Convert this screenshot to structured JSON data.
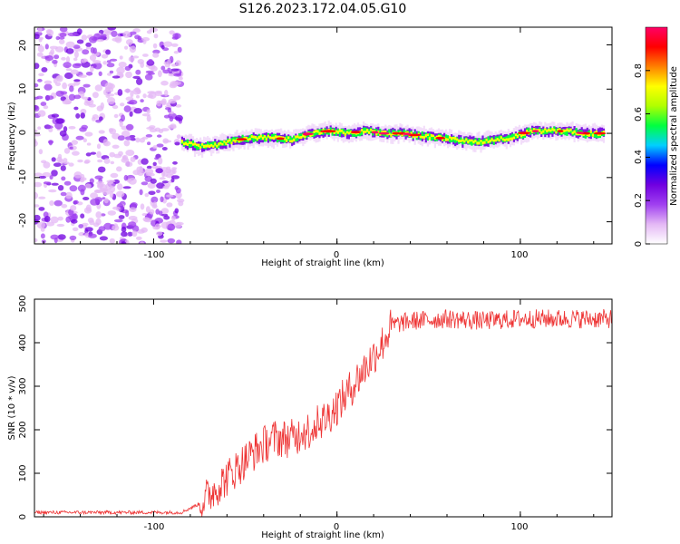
{
  "title": "S126.2023.172.04.05.G10",
  "chart_data": [
    {
      "type": "heatmap",
      "xlabel": "Height of straight line (km)",
      "ylabel": "Frequency (Hz)",
      "xlim": [
        -165,
        150
      ],
      "ylim": [
        -25,
        24
      ],
      "x_ticks": [
        -100,
        0,
        100
      ],
      "y_ticks": [
        -20,
        -10,
        0,
        10,
        20
      ],
      "noise_region_x": [
        -165,
        -85
      ],
      "ridge": {
        "x": [
          -85,
          -75,
          -65,
          -55,
          -45,
          -35,
          -25,
          -15,
          -5,
          5,
          15,
          25,
          35,
          45,
          55,
          65,
          75,
          85,
          95,
          105,
          115,
          125,
          135,
          145
        ],
        "freq": [
          -2,
          -3,
          -2.5,
          -1.5,
          -1,
          -1,
          -1.5,
          0,
          0.5,
          0,
          0.5,
          0,
          0,
          -0.5,
          -1,
          -1.5,
          -2,
          -1.5,
          -1,
          0.5,
          0.5,
          0.5,
          0,
          0
        ]
      },
      "colorbar": {
        "label": "Normalized spectral amplitude",
        "range": [
          0,
          1
        ],
        "ticks": [
          0.0,
          0.2,
          0.4,
          0.6,
          0.8
        ],
        "colors": [
          "#ffffff",
          "#e4b8f5",
          "#a040f0",
          "#7000e0",
          "#0000ff",
          "#00d0ff",
          "#00ff40",
          "#b0ff00",
          "#ffff00",
          "#ff8000",
          "#ff0000",
          "#ff0066"
        ]
      }
    },
    {
      "type": "line",
      "xlabel": "Height of straight line (km)",
      "ylabel": "SNR (10 * v/v)",
      "xlim": [
        -165,
        150
      ],
      "ylim": [
        0,
        500
      ],
      "x_ticks": [
        -100,
        0,
        100
      ],
      "y_ticks": [
        0,
        100,
        200,
        300,
        400,
        500
      ],
      "color": "#ee3333",
      "trend": {
        "x": [
          -165,
          -100,
          -85,
          -75,
          -65,
          -55,
          -45,
          -35,
          -25,
          -15,
          -5,
          5,
          15,
          25,
          30,
          40,
          60,
          80,
          100,
          120,
          150
        ],
        "y": [
          10,
          10,
          10,
          30,
          70,
          110,
          150,
          180,
          180,
          200,
          230,
          280,
          340,
          400,
          440,
          450,
          455,
          450,
          455,
          455,
          455
        ]
      }
    }
  ]
}
